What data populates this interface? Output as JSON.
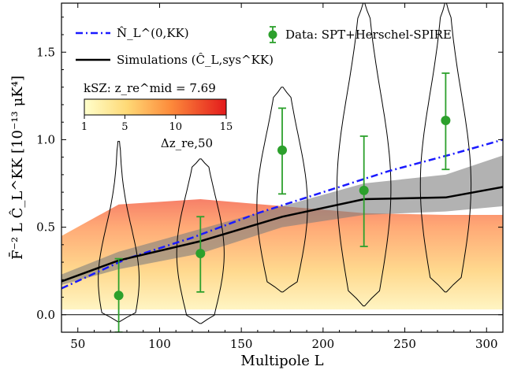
{
  "chart_data": {
    "type": "line",
    "xlabel": "Multipole L",
    "ylabel": "F̄⁻² L Ĉ_L^KK [10⁻¹³ μK⁴]",
    "xlim": [
      40,
      310
    ],
    "ylim": [
      -0.1,
      1.78
    ],
    "xticks": [
      50,
      100,
      150,
      200,
      250,
      300
    ],
    "yticks": [
      "0.0",
      "0.5",
      "1.0",
      "1.5"
    ],
    "colors": {
      "noise": "#1a1aff",
      "sim": "#000000",
      "data": "#2ca02c",
      "band": "#7f7f7f"
    },
    "legend": {
      "noise_label": "N̂_L^(0,KK)",
      "sim_label": "Simulations (Ĉ_L,sys^KK)",
      "data_label": "Data: SPT+Herschel-SPIRE"
    },
    "ksz_label": "kSZ: z_re^mid = 7.69",
    "colorbar": {
      "ticks": [
        "1",
        "5",
        "10",
        "15"
      ],
      "label": "Δz_re,50",
      "range": [
        1,
        15
      ]
    },
    "series": [
      {
        "name": "N̂_L^(0,KK)",
        "style": "dashdot",
        "x": [
          40,
          80,
          120,
          160,
          200,
          240,
          280,
          310
        ],
        "y": [
          0.15,
          0.32,
          0.44,
          0.58,
          0.7,
          0.82,
          0.92,
          1.0
        ]
      },
      {
        "name": "Simulations (Ĉ_L,sys^KK)",
        "style": "solid",
        "x": [
          40,
          75,
          125,
          175,
          225,
          275,
          310
        ],
        "y": [
          0.19,
          0.31,
          0.42,
          0.56,
          0.66,
          0.67,
          0.73
        ],
        "band_low": [
          0.17,
          0.26,
          0.35,
          0.5,
          0.57,
          0.59,
          0.62
        ],
        "band_high": [
          0.23,
          0.36,
          0.49,
          0.62,
          0.75,
          0.8,
          0.91
        ]
      }
    ],
    "data_points": {
      "name": "Data: SPT+Herschel-SPIRE",
      "x": [
        75,
        125,
        175,
        225,
        275
      ],
      "y": [
        0.11,
        0.35,
        0.94,
        0.71,
        1.11
      ],
      "err_low": [
        0.21,
        0.22,
        0.25,
        0.32,
        0.28
      ],
      "err_high": [
        0.21,
        0.21,
        0.24,
        0.31,
        0.27
      ]
    },
    "violins": [
      {
        "x": 75,
        "ymin": -0.04,
        "ymax": 0.99,
        "halfwidth": 24,
        "peak_at": 0.2,
        "sharp": 6
      },
      {
        "x": 125,
        "ymin": -0.05,
        "ymax": 0.89,
        "halfwidth": 28,
        "peak_at": 0.35,
        "sharp": 4
      },
      {
        "x": 175,
        "ymin": 0.13,
        "ymax": 1.3,
        "halfwidth": 30,
        "peak_at": 0.62,
        "sharp": 4
      },
      {
        "x": 225,
        "ymin": 0.05,
        "ymax": 1.78,
        "halfwidth": 32,
        "peak_at": 0.72,
        "sharp": 5
      },
      {
        "x": 275,
        "ymin": 0.13,
        "ymax": 1.78,
        "halfwidth": 30,
        "peak_at": 0.74,
        "sharp": 5
      }
    ],
    "ksz_band": {
      "x": [
        40,
        75,
        125,
        175,
        225,
        275,
        310
      ],
      "top": [
        0.45,
        0.63,
        0.66,
        0.62,
        0.58,
        0.57,
        0.57
      ],
      "bottom": [
        0.03,
        0.03,
        0.03,
        0.03,
        0.03,
        0.03,
        0.03
      ]
    }
  }
}
